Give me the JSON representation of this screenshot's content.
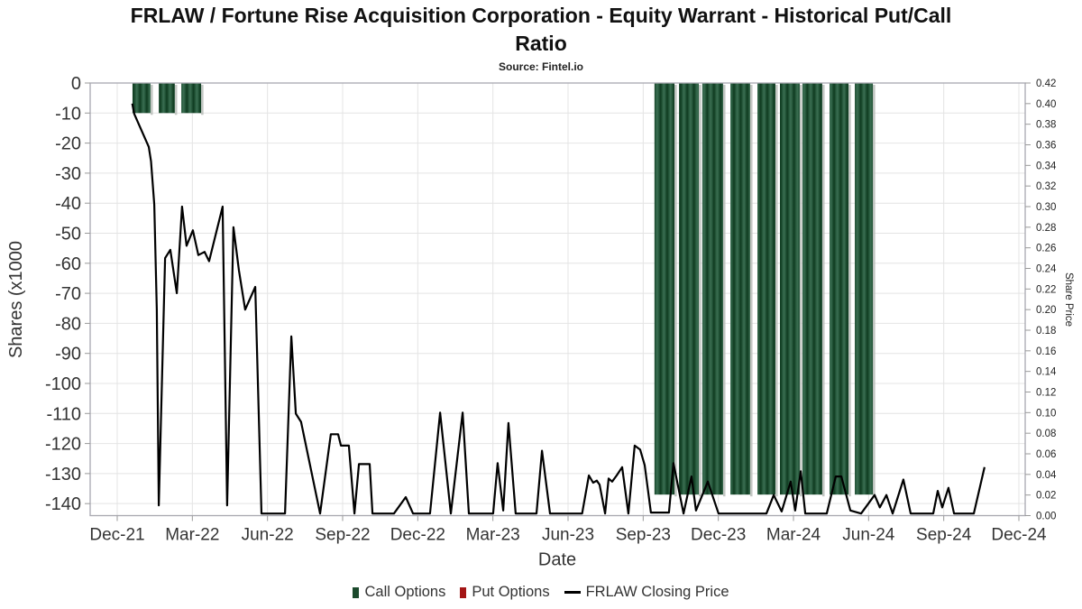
{
  "page": {
    "title": "FRLAW / Fortune Rise Acquisition Corporation - Equity Warrant - Historical Put/Call Ratio",
    "title_line1": "FRLAW / Fortune Rise Acquisition Corporation - Equity Warrant - Historical Put/Call",
    "title_line2": "Ratio",
    "source": "Source: Fintel.io"
  },
  "chart_data": {
    "type": "bar",
    "subtype": "combo bar + line, dual y-axis",
    "title": "FRLAW / Fortune Rise Acquisition Corporation - Equity Warrant - Historical Put/Call Ratio",
    "subtitle": "Source: Fintel.io",
    "x_axis": {
      "label": "Date",
      "tick_labels": [
        "Dec-21",
        "Mar-22",
        "Jun-22",
        "Sep-22",
        "Dec-22",
        "Mar-23",
        "Jun-23",
        "Sep-23",
        "Dec-23",
        "Mar-24",
        "Jun-24",
        "Sep-24",
        "Dec-24"
      ],
      "unit_note": "series x values below are months after the Dec-21 tick (0 = Dec-21, 36 = Dec-24)",
      "grid": true
    },
    "y_left": {
      "label": "Shares (x1000",
      "ticks": [
        0,
        -10,
        -20,
        -30,
        -40,
        -50,
        -60,
        -70,
        -80,
        -90,
        -100,
        -110,
        -120,
        -130,
        -140
      ],
      "min": -144,
      "max": 0,
      "grid": true
    },
    "y_right": {
      "label": "Share Price",
      "ticks": [
        0.42,
        0.4,
        0.38,
        0.36,
        0.34,
        0.32,
        0.3,
        0.28,
        0.26,
        0.24,
        0.22,
        0.2,
        0.18,
        0.16,
        0.14,
        0.12,
        0.1,
        0.08,
        0.06,
        0.04,
        0.02,
        0.0
      ],
      "min": 0.0,
      "max": 0.42,
      "grid": false
    },
    "legend": {
      "call": "Call Options",
      "put": "Put Options",
      "price": "FRLAW Closing Price"
    },
    "legend_position": "bottom center",
    "colors": {
      "call": "#1b4a2c",
      "call_band_dark": "#0e3a1f",
      "call_band_light": "#3b6e52",
      "put": "#a31515",
      "line": "#000000",
      "grid": "#e4e4e4",
      "axis": "#a8a8b0",
      "tick": "#999999",
      "text": "#333333",
      "shadow": "#b9bdb9"
    },
    "series": [
      {
        "name": "Call Options",
        "type": "bar",
        "axis": "left",
        "units": "shares x1000",
        "bars": [
          {
            "label": "Jan-22",
            "m0": 0.61,
            "m1": 1.33,
            "value": -10
          },
          {
            "label": "Feb-22",
            "m0": 1.66,
            "m1": 2.3,
            "value": -10
          },
          {
            "label": "Mar-22",
            "m0": 2.56,
            "m1": 3.35,
            "value": -10
          },
          {
            "label": "Oct-23",
            "m0": 21.45,
            "m1": 22.25,
            "value": -137
          },
          {
            "label": "Nov-23",
            "m0": 22.43,
            "m1": 23.22,
            "value": -137
          },
          {
            "label": "Dec-23",
            "m0": 23.36,
            "m1": 24.19,
            "value": -137
          },
          {
            "label": "Jan-24",
            "m0": 24.48,
            "m1": 25.27,
            "value": -137
          },
          {
            "label": "Feb-24",
            "m0": 25.56,
            "m1": 26.28,
            "value": -137
          },
          {
            "label": "Mar-24",
            "m0": 26.46,
            "m1": 27.25,
            "value": -137
          },
          {
            "label": "Apr-24",
            "m0": 27.36,
            "m1": 28.15,
            "value": -137
          },
          {
            "label": "May-24",
            "m0": 28.44,
            "m1": 29.2,
            "value": -137
          },
          {
            "label": "Jun-24",
            "m0": 29.45,
            "m1": 30.17,
            "value": -137
          }
        ]
      },
      {
        "name": "Put Options",
        "type": "bar",
        "axis": "left",
        "units": "shares x1000",
        "bars": []
      },
      {
        "name": "FRLAW Closing Price",
        "type": "line",
        "axis": "right",
        "units": "USD",
        "points": [
          [
            0.6,
            0.4
          ],
          [
            0.68,
            0.39
          ],
          [
            1.26,
            0.358
          ],
          [
            1.35,
            0.344
          ],
          [
            1.48,
            0.302
          ],
          [
            1.58,
            0.2
          ],
          [
            1.66,
            0.01
          ],
          [
            1.91,
            0.25
          ],
          [
            2.12,
            0.258
          ],
          [
            2.38,
            0.216
          ],
          [
            2.59,
            0.3
          ],
          [
            2.77,
            0.262
          ],
          [
            3.02,
            0.277
          ],
          [
            3.24,
            0.253
          ],
          [
            3.49,
            0.256
          ],
          [
            3.67,
            0.247
          ],
          [
            4.21,
            0.3
          ],
          [
            4.39,
            0.01
          ],
          [
            4.64,
            0.28
          ],
          [
            4.86,
            0.238
          ],
          [
            5.11,
            0.2
          ],
          [
            5.51,
            0.222
          ],
          [
            5.76,
            0.002
          ],
          [
            6.7,
            0.002
          ],
          [
            6.95,
            0.174
          ],
          [
            7.13,
            0.099
          ],
          [
            7.34,
            0.091
          ],
          [
            8.1,
            0.002
          ],
          [
            8.53,
            0.079
          ],
          [
            8.82,
            0.079
          ],
          [
            8.93,
            0.068
          ],
          [
            9.25,
            0.068
          ],
          [
            9.47,
            0.002
          ],
          [
            9.65,
            0.05
          ],
          [
            10.08,
            0.05
          ],
          [
            10.19,
            0.002
          ],
          [
            11.05,
            0.002
          ],
          [
            11.52,
            0.018
          ],
          [
            11.81,
            0.002
          ],
          [
            12.49,
            0.002
          ],
          [
            12.89,
            0.1
          ],
          [
            13.32,
            0.002
          ],
          [
            13.79,
            0.1
          ],
          [
            14.04,
            0.002
          ],
          [
            15.01,
            0.002
          ],
          [
            15.19,
            0.051
          ],
          [
            15.41,
            0.005
          ],
          [
            15.62,
            0.09
          ],
          [
            15.91,
            0.002
          ],
          [
            16.74,
            0.002
          ],
          [
            16.96,
            0.063
          ],
          [
            17.28,
            0.002
          ],
          [
            18.56,
            0.002
          ],
          [
            18.83,
            0.039
          ],
          [
            19.0,
            0.032
          ],
          [
            19.15,
            0.034
          ],
          [
            19.26,
            0.03
          ],
          [
            19.48,
            0.002
          ],
          [
            19.62,
            0.036
          ],
          [
            19.76,
            0.033
          ],
          [
            19.94,
            0.039
          ],
          [
            20.16,
            0.047
          ],
          [
            20.41,
            0.002
          ],
          [
            20.66,
            0.068
          ],
          [
            20.88,
            0.064
          ],
          [
            21.06,
            0.049
          ],
          [
            21.31,
            0.003
          ],
          [
            22.03,
            0.003
          ],
          [
            22.21,
            0.051
          ],
          [
            22.61,
            0.002
          ],
          [
            22.93,
            0.038
          ],
          [
            23.11,
            0.005
          ],
          [
            23.58,
            0.033
          ],
          [
            24.01,
            0.002
          ],
          [
            25.92,
            0.002
          ],
          [
            26.21,
            0.02
          ],
          [
            26.53,
            0.004
          ],
          [
            26.89,
            0.033
          ],
          [
            27.07,
            0.005
          ],
          [
            27.29,
            0.043
          ],
          [
            27.47,
            0.002
          ],
          [
            28.33,
            0.002
          ],
          [
            28.69,
            0.038
          ],
          [
            28.91,
            0.038
          ],
          [
            29.27,
            0.005
          ],
          [
            29.7,
            0.002
          ],
          [
            30.24,
            0.02
          ],
          [
            30.45,
            0.008
          ],
          [
            30.71,
            0.02
          ],
          [
            30.96,
            0.002
          ],
          [
            31.39,
            0.035
          ],
          [
            31.68,
            0.002
          ],
          [
            32.58,
            0.002
          ],
          [
            32.76,
            0.024
          ],
          [
            32.94,
            0.008
          ],
          [
            33.19,
            0.027
          ],
          [
            33.41,
            0.002
          ],
          [
            34.2,
            0.002
          ],
          [
            34.63,
            0.047
          ]
        ]
      }
    ]
  }
}
